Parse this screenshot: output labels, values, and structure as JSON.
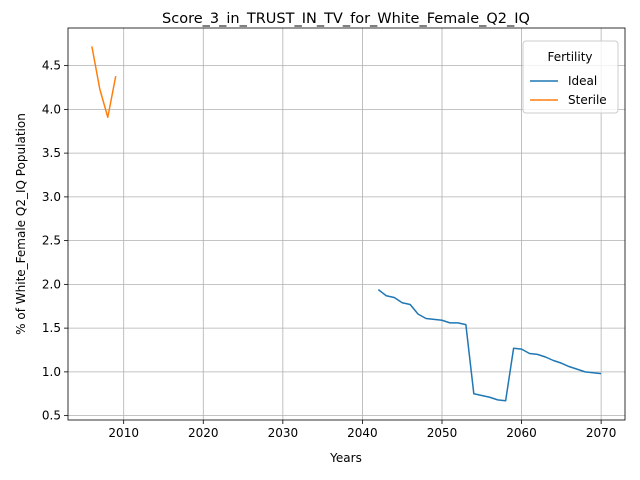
{
  "chart_data": {
    "type": "line",
    "title": "Score_3_in_TRUST_IN_TV_for_White_Female_Q2_IQ",
    "xlabel": "Years",
    "ylabel": "% of White_Female Q2_IQ Population",
    "xlim": [
      2003,
      2073
    ],
    "ylim": [
      0.45,
      4.93
    ],
    "xticks": [
      2010,
      2020,
      2030,
      2040,
      2050,
      2060,
      2070
    ],
    "yticks": [
      0.5,
      1.0,
      1.5,
      2.0,
      2.5,
      3.0,
      3.5,
      4.0,
      4.5
    ],
    "grid": true,
    "legend": {
      "title": "Fertility",
      "position": "top-right"
    },
    "series": [
      {
        "name": "Ideal",
        "color": "#1f77b4",
        "x": [
          2042,
          2043,
          2044,
          2045,
          2046,
          2047,
          2048,
          2049,
          2050,
          2051,
          2052,
          2053,
          2054,
          2055,
          2056,
          2057,
          2058,
          2059,
          2060,
          2061,
          2062,
          2063,
          2064,
          2065,
          2066,
          2067,
          2068,
          2069,
          2070
        ],
        "y": [
          1.94,
          1.87,
          1.85,
          1.79,
          1.77,
          1.66,
          1.61,
          1.6,
          1.59,
          1.56,
          1.56,
          1.54,
          0.75,
          0.73,
          0.71,
          0.68,
          0.67,
          1.27,
          1.26,
          1.21,
          1.2,
          1.17,
          1.13,
          1.1,
          1.06,
          1.03,
          1.0,
          0.99,
          0.98
        ]
      },
      {
        "name": "Sterile",
        "color": "#ff7f0e",
        "x": [
          2006,
          2007,
          2008,
          2009
        ],
        "y": [
          4.72,
          4.23,
          3.91,
          4.38
        ]
      }
    ]
  }
}
